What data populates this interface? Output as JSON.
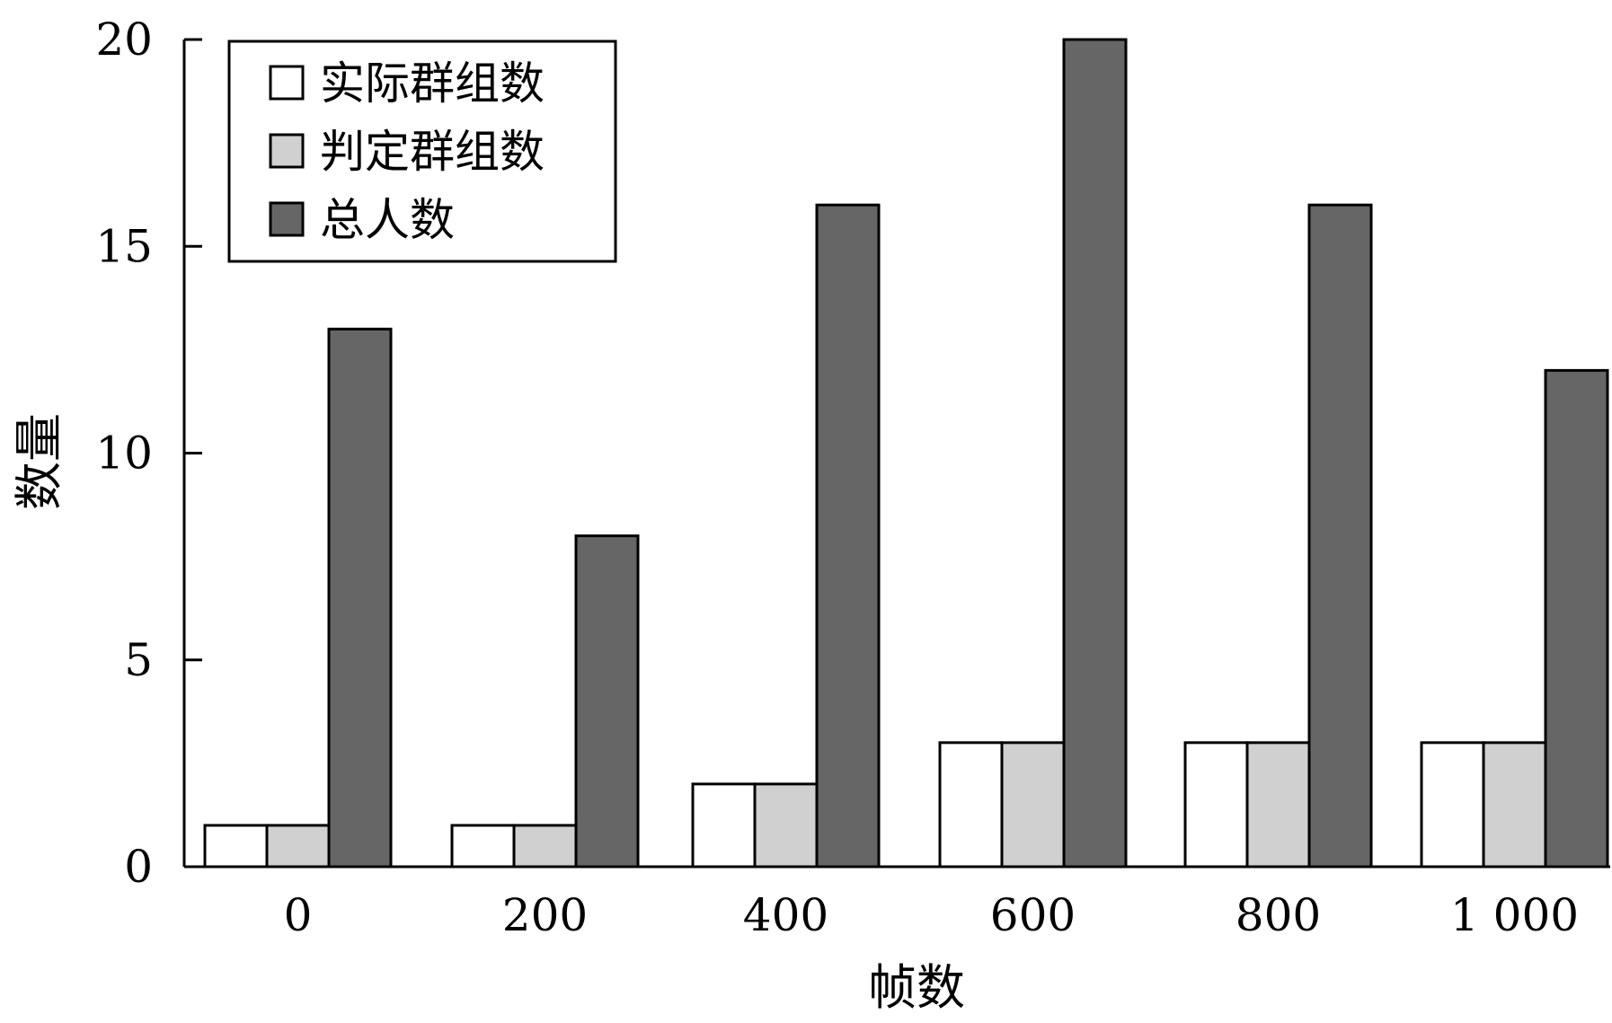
{
  "chart_data": {
    "type": "bar",
    "title": "",
    "xlabel": "帧数",
    "ylabel": "数量",
    "categories": [
      "0",
      "200",
      "400",
      "600",
      "800",
      "1 000"
    ],
    "series": [
      {
        "name": "实际群组数",
        "values": [
          1,
          1,
          2,
          3,
          3,
          3
        ],
        "color": "#ffffff"
      },
      {
        "name": "判定群组数",
        "values": [
          1,
          1,
          2,
          3,
          3,
          3
        ],
        "color": "#d0d0d0"
      },
      {
        "name": "总人数",
        "values": [
          13,
          8,
          16,
          20,
          16,
          12
        ],
        "color": "#666666"
      }
    ],
    "ylim": [
      0,
      20
    ],
    "yticks": [
      "0",
      "5",
      "10",
      "15",
      "20"
    ],
    "grid": false,
    "legend_position": "top-left"
  }
}
